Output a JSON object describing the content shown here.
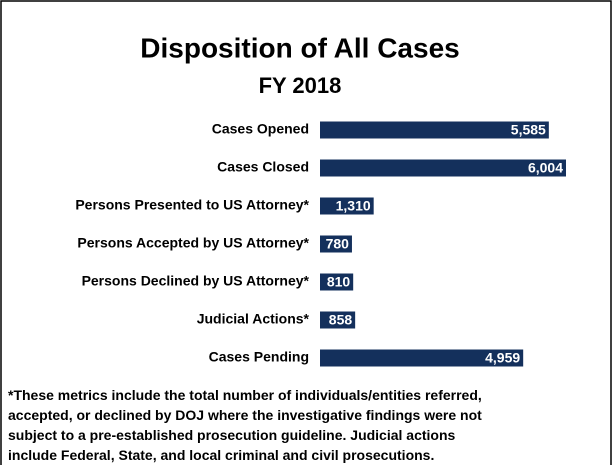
{
  "chart_data": {
    "type": "bar",
    "orientation": "horizontal",
    "title": "Disposition of All Cases",
    "subtitle": "FY 2018",
    "categories": [
      "Cases Opened",
      "Cases Closed",
      "Persons Presented to US Attorney*",
      "Persons Accepted by US Attorney*",
      "Persons Declined by US Attorney*",
      "Judicial Actions*",
      "Cases Pending"
    ],
    "values": [
      5585,
      6004,
      1310,
      780,
      810,
      858,
      4959
    ],
    "value_labels": [
      "5,585",
      "6,004",
      "1,310",
      "780",
      "810",
      "858",
      "4,959"
    ],
    "color": "#14305c",
    "footnote": [
      "*These metrics include the total number of individuals/entities referred,",
      "accepted, or declined by DOJ where the investigative findings were not",
      "subject to a pre-established prosecution guideline.  Judicial actions",
      "include Federal, State, and local criminal and civil prosecutions."
    ]
  }
}
